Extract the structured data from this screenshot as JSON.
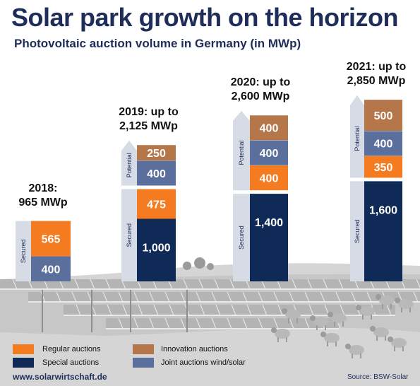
{
  "header": {
    "title": "Solar park growth on the horizon",
    "subtitle": "Photovoltaic auction volume in Germany (in MWp)"
  },
  "colors": {
    "regular": "#f47b20",
    "special": "#0f2a57",
    "innovation": "#b5774a",
    "joint": "#5b6f9c",
    "side_panel": "#d6dbe6",
    "title": "#1f2d5a"
  },
  "chart_data": {
    "type": "bar",
    "stacked": true,
    "categories": [
      "2018",
      "2019",
      "2020",
      "2021"
    ],
    "category_labels": [
      "2018:\n965 MWp",
      "2019: up to\n2,125 MWp",
      "2020: up to\n2,600 MWp",
      "2021: up to\n2,850 MWp"
    ],
    "groups": {
      "secured": "Secured",
      "potential": "Potential"
    },
    "bars": [
      {
        "year": "2018",
        "total_label": "2018:\n965 MWp",
        "secured": [
          {
            "series": "joint",
            "value": 400
          },
          {
            "series": "regular",
            "value": 565
          }
        ],
        "potential": []
      },
      {
        "year": "2019",
        "total_label": "2019: up to\n2,125 MWp",
        "secured": [
          {
            "series": "special",
            "value": 1000
          },
          {
            "series": "regular",
            "value": 475
          }
        ],
        "potential": [
          {
            "series": "joint",
            "value": 400
          },
          {
            "series": "innovation",
            "value": 250
          }
        ]
      },
      {
        "year": "2020",
        "total_label": "2020: up to\n2,600 MWp",
        "secured": [
          {
            "series": "special",
            "value": 1400
          }
        ],
        "potential": [
          {
            "series": "regular",
            "value": 400
          },
          {
            "series": "joint",
            "value": 400
          },
          {
            "series": "innovation",
            "value": 400
          }
        ]
      },
      {
        "year": "2021",
        "total_label": "2021: up to\n2,850 MWp",
        "secured": [
          {
            "series": "special",
            "value": 1600
          }
        ],
        "potential": [
          {
            "series": "regular",
            "value": 350
          },
          {
            "series": "joint",
            "value": 400
          },
          {
            "series": "innovation",
            "value": 500
          }
        ]
      }
    ],
    "series": [
      {
        "key": "regular",
        "name": "Regular auctions"
      },
      {
        "key": "special",
        "name": "Special auctions"
      },
      {
        "key": "innovation",
        "name": "Innovation auctions"
      },
      {
        "key": "joint",
        "name": "Joint auctions wind/solar"
      }
    ]
  },
  "legend": {
    "regular": "Regular auctions",
    "special": "Special auctions",
    "innovation": "Innovation auctions",
    "joint": "Joint auctions wind/solar"
  },
  "footer": {
    "website": "www.solarwirtschaft.de",
    "source": "Source: BSW-Solar"
  }
}
